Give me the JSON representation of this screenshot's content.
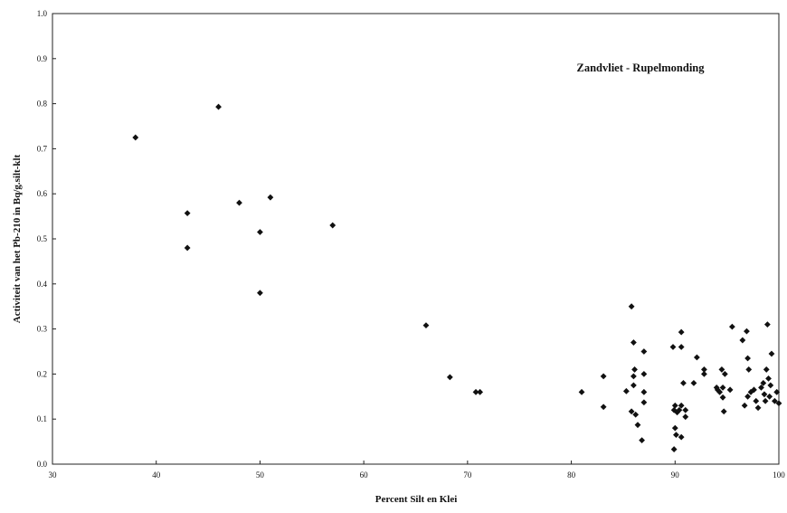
{
  "chart_data": {
    "type": "scatter",
    "title": "Zandvliet - Rupelmonding",
    "xlabel": "Percent Silt en Klei",
    "ylabel": "Activiteit van het Pb-210 in Bq/g.silt-klt",
    "xlim": [
      30,
      100
    ],
    "ylim": [
      0.0,
      1.0
    ],
    "xticks": [
      "30",
      "40",
      "50",
      "60",
      "70",
      "80",
      "90",
      "100"
    ],
    "yticks": [
      "0.0",
      "0.1",
      "0.2",
      "0.3",
      "0.4",
      "0.5",
      "0.6",
      "0.7",
      "0.8",
      "0.9",
      "1.0"
    ],
    "grid": false,
    "marker_color": "#111111",
    "series": [
      {
        "points": [
          [
            38.0,
            0.725
          ],
          [
            43.0,
            0.557
          ],
          [
            43.0,
            0.48
          ],
          [
            46.0,
            0.793
          ],
          [
            48.0,
            0.58
          ],
          [
            50.0,
            0.515
          ],
          [
            50.0,
            0.38
          ],
          [
            51.0,
            0.592
          ],
          [
            57.0,
            0.53
          ],
          [
            66.0,
            0.308
          ],
          [
            68.3,
            0.193
          ],
          [
            70.8,
            0.16
          ],
          [
            71.2,
            0.16
          ],
          [
            81.0,
            0.16
          ],
          [
            83.1,
            0.195
          ],
          [
            83.1,
            0.127
          ],
          [
            85.3,
            0.162
          ],
          [
            85.8,
            0.35
          ],
          [
            86.0,
            0.27
          ],
          [
            86.1,
            0.21
          ],
          [
            86.0,
            0.195
          ],
          [
            86.0,
            0.175
          ],
          [
            85.8,
            0.117
          ],
          [
            86.2,
            0.11
          ],
          [
            86.4,
            0.087
          ],
          [
            86.8,
            0.053
          ],
          [
            87.0,
            0.25
          ],
          [
            87.0,
            0.2
          ],
          [
            87.0,
            0.16
          ],
          [
            87.0,
            0.137
          ],
          [
            89.8,
            0.26
          ],
          [
            90.6,
            0.26
          ],
          [
            90.6,
            0.293
          ],
          [
            90.0,
            0.13
          ],
          [
            89.9,
            0.12
          ],
          [
            90.2,
            0.115
          ],
          [
            90.4,
            0.12
          ],
          [
            90.0,
            0.08
          ],
          [
            90.1,
            0.065
          ],
          [
            89.9,
            0.033
          ],
          [
            90.6,
            0.06
          ],
          [
            90.8,
            0.18
          ],
          [
            90.6,
            0.13
          ],
          [
            91.0,
            0.12
          ],
          [
            91.0,
            0.105
          ],
          [
            91.8,
            0.18
          ],
          [
            92.1,
            0.237
          ],
          [
            92.8,
            0.21
          ],
          [
            92.8,
            0.2
          ],
          [
            94.0,
            0.17
          ],
          [
            94.1,
            0.165
          ],
          [
            94.3,
            0.16
          ],
          [
            94.5,
            0.21
          ],
          [
            94.6,
            0.17
          ],
          [
            94.8,
            0.2
          ],
          [
            94.6,
            0.148
          ],
          [
            94.7,
            0.117
          ],
          [
            95.3,
            0.165
          ],
          [
            95.5,
            0.305
          ],
          [
            96.5,
            0.275
          ],
          [
            96.7,
            0.13
          ],
          [
            96.9,
            0.295
          ],
          [
            97.0,
            0.235
          ],
          [
            97.1,
            0.21
          ],
          [
            97.0,
            0.15
          ],
          [
            97.3,
            0.16
          ],
          [
            97.6,
            0.165
          ],
          [
            97.8,
            0.14
          ],
          [
            98.0,
            0.125
          ],
          [
            98.3,
            0.17
          ],
          [
            98.5,
            0.18
          ],
          [
            98.6,
            0.155
          ],
          [
            98.7,
            0.14
          ],
          [
            98.9,
            0.31
          ],
          [
            98.8,
            0.21
          ],
          [
            99.0,
            0.19
          ],
          [
            99.2,
            0.175
          ],
          [
            99.1,
            0.15
          ],
          [
            99.3,
            0.245
          ],
          [
            99.6,
            0.14
          ],
          [
            99.8,
            0.16
          ],
          [
            100.0,
            0.135
          ]
        ]
      }
    ]
  }
}
